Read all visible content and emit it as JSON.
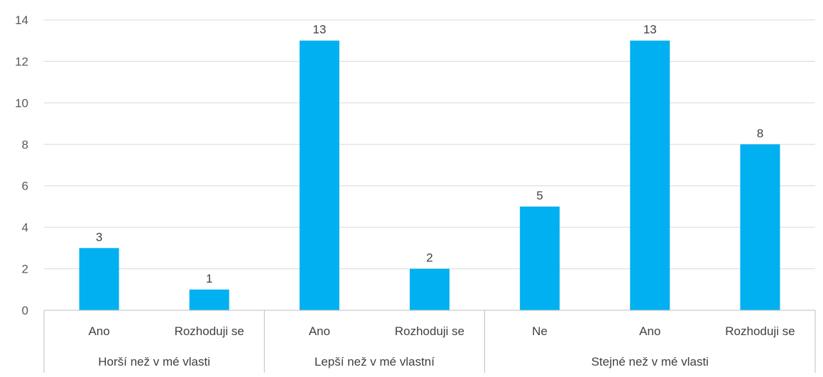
{
  "chart_data": {
    "type": "bar",
    "title": "",
    "xlabel": "",
    "ylabel": "",
    "ylim": [
      0,
      14
    ],
    "yticks": [
      0,
      2,
      4,
      6,
      8,
      10,
      12,
      14
    ],
    "grid": true,
    "legend": "none",
    "bar_color": "#00b0f0",
    "groups": [
      {
        "name": "Horší než v mé vlasti",
        "categories": [
          "Ano",
          "Rozhoduji se"
        ],
        "values": [
          3,
          1
        ]
      },
      {
        "name": "Lepší než v mé vlastní",
        "categories": [
          "Ano",
          "Rozhoduji se"
        ],
        "values": [
          13,
          2
        ]
      },
      {
        "name": "Stejné než v mé vlasti",
        "categories": [
          "Ne",
          "Ano",
          "Rozhoduji se"
        ],
        "values": [
          5,
          13,
          8
        ]
      }
    ]
  }
}
